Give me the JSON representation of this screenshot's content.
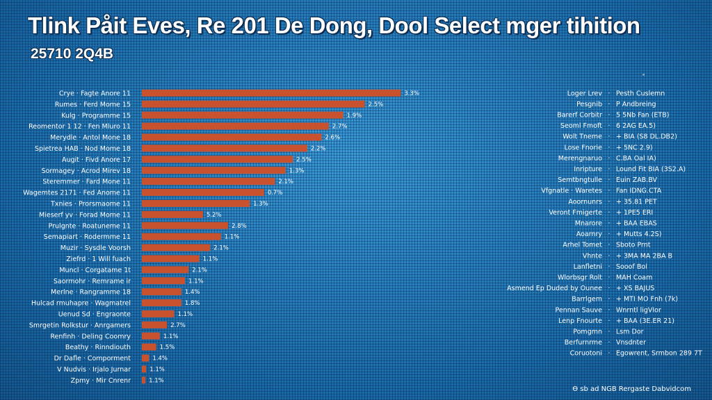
{
  "title": "Tlink Påit Eves, Re 201 De Dong, Dool Select mger tihition",
  "subtitle": "25710 2Q4B",
  "corner_mark": "ᵃ",
  "footer": "Ɵ sb ad NGB Rergaste Dabvidcom",
  "colors": {
    "bar": "#c8522e",
    "background": "#1f78b8",
    "text": "#ffffff"
  },
  "chart_data": {
    "type": "bar",
    "orientation": "horizontal",
    "categories": [
      "Crye · Fagte Anore 11",
      "Rumes · Ferd Mome 15",
      "Kulg · Programme 15",
      "Reomentor 1 12 · Fen Mluro 11",
      "Merydle · Antol Mone 18",
      "Spietrea HAB · Nod Mome 18",
      "Augit · Fivd Anore 17",
      "Sormagey · Acrod Mirev 18",
      "Steremmer · Fard Mone 11",
      "Wagemtes 2171 · Fed Anome 11",
      "Txnies · Prorsmaome 11",
      "Mieserf yv · Forad Mome 11",
      "Prulgnte · Roatuneme 11",
      "Semapiart · Rodermme 11",
      "Muzir · Sysdle Voorsh",
      "Ziefrd · 1 Will fuach",
      "Muncl · Corgatame 1t",
      "Saormohr · Remrame ir",
      "Merlne · Rangramme 18",
      "Hulcad rmuhapre · Wagmatrel",
      "Uenud Sd · Engraonte",
      "Smrgetin Rolkstur · Anrgamers",
      "Renfinh · Deling Coomry",
      "Beathy · Rinndiouth",
      "Dr Dafle · Comporment",
      "V Nudvis · Irjalo Jurnar",
      "Zpmy · Mir Cnrenr"
    ],
    "values": [
      3.6,
      3.1,
      2.8,
      2.6,
      2.5,
      2.3,
      2.1,
      2.0,
      1.85,
      1.7,
      1.5,
      0.85,
      1.2,
      1.1,
      0.95,
      0.8,
      0.65,
      0.6,
      0.55,
      0.55,
      0.45,
      0.35,
      0.25,
      0.2,
      0.1,
      0.06,
      0.05
    ],
    "value_labels": [
      "3.3%",
      "2.5%",
      "1.9%",
      "2.7%",
      "2.6%",
      "2.2%",
      "2.5%",
      "1.3%",
      "2.1%",
      "0.7%",
      "1.3%",
      "5.2%",
      "2.8%",
      "1.1%",
      "2.1%",
      "1.1%",
      "2.1%",
      "1.1%",
      "1.4%",
      "1.8%",
      "1.1%",
      "2.7%",
      "1.1%",
      "1.5%",
      "1.4%",
      "1.1%",
      "1.1%"
    ],
    "xlim": [
      0,
      3.8
    ],
    "grid": false,
    "legend": {
      "placement": "right",
      "entries": [
        {
          "name": "Loger Lrev",
          "value": "Pesth Cuslemn"
        },
        {
          "name": "Pesgnib",
          "value": "P Andbreing"
        },
        {
          "name": "Barerf Corbitr",
          "value": "5 5Nb Fan (ETB)"
        },
        {
          "name": "Seoml Fmoft",
          "value": "6 2AG EA.5)"
        },
        {
          "name": "Wolt Tneme",
          "value": "+ BIA (S8 DL.DB2)"
        },
        {
          "name": "Lose Fnorie",
          "value": "+ 5NC 2.9)"
        },
        {
          "name": "Merengnaruo",
          "value": "C.BA Oal IA)"
        },
        {
          "name": "Inripture",
          "value": "Lound Fit BIA (3S2.A)"
        },
        {
          "name": "Semtbngtulle",
          "value": "Euin ZAB.BV"
        },
        {
          "name": "Vfgnatle · Waretes",
          "value": "Fan IDNG.CTA"
        },
        {
          "name": "Aoornunrs",
          "value": "+ 35.81 PET"
        },
        {
          "name": "Veront Fmigerte",
          "value": "+ 1PE5 ERI"
        },
        {
          "name": "Mnarore",
          "value": "+ BAA EBAS"
        },
        {
          "name": "Aoarnry",
          "value": "+ Mutts 4.2S)"
        },
        {
          "name": "Arhel Tomet",
          "value": "Sboto Prnt"
        },
        {
          "name": "Vhnte",
          "value": "+ 3MA MA 2BA B"
        },
        {
          "name": "Lanfletni",
          "value": "Sooof Bol"
        },
        {
          "name": "Wlorbsgr Rolt",
          "value": "MAH Coam"
        },
        {
          "name": "Asmend Ep Duded by Ounee",
          "value": "+ XS BAJUS"
        },
        {
          "name": "Barrlgem",
          "value": "+ MTI MO Fnh (7k)"
        },
        {
          "name": "Pennan Sauve",
          "value": "Wnrntl ligVIor"
        },
        {
          "name": "Lenp Fnourte",
          "value": "+ BAA (3E.ER 21)"
        },
        {
          "name": "Pomgmn",
          "value": "Lsm Dor"
        },
        {
          "name": "Berfurnrme",
          "value": "Vnsdnter"
        },
        {
          "name": "Coruotoni",
          "value": "Egowrent, Srmbon 289 7T"
        }
      ]
    }
  }
}
